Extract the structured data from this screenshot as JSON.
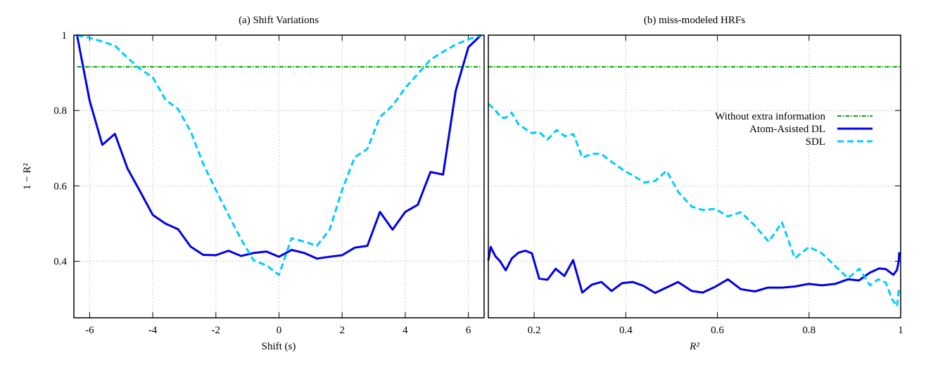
{
  "chart_data": [
    {
      "type": "line",
      "title": "(a) Shift Variations",
      "xlabel": "Shift (s)",
      "ylabel": "1 − R²",
      "xlim": [
        -6.5,
        6.5
      ],
      "ylim": [
        0.25,
        1
      ],
      "xticks": [
        -6,
        -4,
        -2,
        0,
        2,
        4,
        6
      ],
      "yticks": [
        0.4,
        0.6,
        0.8,
        1
      ],
      "ytick_labels": [
        "0.4",
        "0.6",
        "0.8",
        "1"
      ],
      "grid": true,
      "x": [
        -6.4,
        -6.0,
        -5.6,
        -5.2,
        -4.8,
        -4.4,
        -4.0,
        -3.6,
        -3.2,
        -2.8,
        -2.4,
        -2.0,
        -1.6,
        -1.2,
        -0.8,
        -0.4,
        0,
        0.4,
        0.8,
        1.2,
        1.6,
        2.0,
        2.4,
        2.8,
        3.2,
        3.6,
        4.0,
        4.4,
        4.8,
        5.2,
        5.6,
        6.0,
        6.4
      ],
      "series": [
        {
          "name": "Without extra information",
          "color": "#00aa00",
          "style": "dash-dot",
          "values": [
            0.916,
            0.916,
            0.916,
            0.916,
            0.916,
            0.916,
            0.916,
            0.916,
            0.916,
            0.916,
            0.916,
            0.916,
            0.916,
            0.916,
            0.916,
            0.916,
            0.916,
            0.916,
            0.916,
            0.916,
            0.916,
            0.916,
            0.916,
            0.916,
            0.916,
            0.916,
            0.916,
            0.916,
            0.916,
            0.916,
            0.916,
            0.916,
            0.916
          ]
        },
        {
          "name": "Atom-Asisted DL",
          "color": "#0000ee",
          "style": "solid",
          "values": [
            1.0,
            0.826,
            0.709,
            0.738,
            0.646,
            0.585,
            0.523,
            0.5,
            0.485,
            0.439,
            0.417,
            0.416,
            0.428,
            0.414,
            0.422,
            0.426,
            0.412,
            0.43,
            0.422,
            0.407,
            0.412,
            0.416,
            0.436,
            0.441,
            0.531,
            0.484,
            0.531,
            0.55,
            0.637,
            0.63,
            0.852,
            0.968,
            1.0
          ]
        },
        {
          "name": "SDL",
          "color": "#00ccff",
          "style": "dashed",
          "values": [
            1.0,
            0.993,
            0.983,
            0.972,
            0.94,
            0.91,
            0.888,
            0.829,
            0.804,
            0.745,
            0.658,
            0.589,
            0.523,
            0.458,
            0.402,
            0.389,
            0.364,
            0.461,
            0.452,
            0.441,
            0.483,
            0.589,
            0.676,
            0.698,
            0.783,
            0.813,
            0.86,
            0.897,
            0.935,
            0.956,
            0.975,
            0.989,
            1.0
          ]
        }
      ]
    },
    {
      "type": "line",
      "title": "(b) miss-modeled HRFs",
      "xlabel": "R²",
      "xlim": [
        0.1,
        1
      ],
      "ylim": [
        0.25,
        1
      ],
      "xticks": [
        0.2,
        0.4,
        0.6,
        0.8,
        1
      ],
      "xtick_labels": [
        "0.2",
        "0.4",
        "0.6",
        "0.8",
        "1"
      ],
      "yticks": [
        0.4,
        0.6,
        0.8,
        1
      ],
      "grid": true,
      "legend_position": "right",
      "series": [
        {
          "name": "Without extra information",
          "color": "#00aa00",
          "style": "dash-dot",
          "x": [
            0.1,
            1.0
          ],
          "values": [
            0.916,
            0.916
          ]
        },
        {
          "name": "Atom-Asisted DL",
          "color": "#0000ee",
          "style": "solid",
          "x": [
            0.1,
            0.105,
            0.115,
            0.125,
            0.138,
            0.151,
            0.166,
            0.181,
            0.195,
            0.211,
            0.229,
            0.247,
            0.266,
            0.285,
            0.305,
            0.326,
            0.347,
            0.369,
            0.392,
            0.415,
            0.438,
            0.464,
            0.49,
            0.514,
            0.544,
            0.568,
            0.595,
            0.623,
            0.651,
            0.682,
            0.71,
            0.741,
            0.769,
            0.799,
            0.828,
            0.857,
            0.885,
            0.909,
            0.933,
            0.953,
            0.968,
            0.984,
            0.992,
            0.996,
            0.997
          ],
          "values": [
            0.402,
            0.438,
            0.414,
            0.401,
            0.376,
            0.407,
            0.423,
            0.428,
            0.421,
            0.354,
            0.351,
            0.38,
            0.361,
            0.403,
            0.317,
            0.338,
            0.345,
            0.321,
            0.342,
            0.345,
            0.335,
            0.316,
            0.331,
            0.345,
            0.321,
            0.317,
            0.332,
            0.352,
            0.326,
            0.32,
            0.33,
            0.33,
            0.333,
            0.34,
            0.336,
            0.34,
            0.352,
            0.349,
            0.37,
            0.381,
            0.379,
            0.364,
            0.377,
            0.402,
            0.424
          ]
        },
        {
          "name": "SDL",
          "color": "#00ccff",
          "style": "dashed",
          "x": [
            0.1,
            0.113,
            0.128,
            0.138,
            0.151,
            0.166,
            0.195,
            0.211,
            0.229,
            0.249,
            0.267,
            0.286,
            0.305,
            0.326,
            0.346,
            0.369,
            0.397,
            0.418,
            0.44,
            0.464,
            0.489,
            0.515,
            0.544,
            0.568,
            0.595,
            0.623,
            0.651,
            0.679,
            0.712,
            0.741,
            0.769,
            0.8,
            0.828,
            0.856,
            0.885,
            0.91,
            0.933,
            0.951,
            0.968,
            0.98,
            0.992,
            0.997
          ],
          "values": [
            0.818,
            0.804,
            0.781,
            0.781,
            0.794,
            0.763,
            0.74,
            0.743,
            0.723,
            0.748,
            0.732,
            0.737,
            0.675,
            0.685,
            0.685,
            0.664,
            0.64,
            0.626,
            0.609,
            0.613,
            0.64,
            0.583,
            0.545,
            0.536,
            0.539,
            0.519,
            0.53,
            0.498,
            0.452,
            0.503,
            0.408,
            0.438,
            0.421,
            0.389,
            0.355,
            0.38,
            0.336,
            0.352,
            0.343,
            0.302,
            0.28,
            0.333
          ]
        }
      ]
    }
  ]
}
